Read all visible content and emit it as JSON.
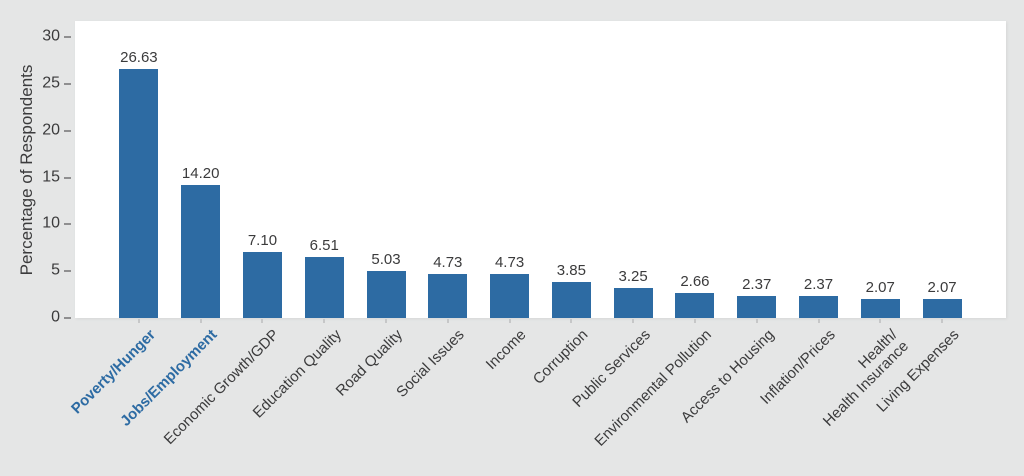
{
  "chart_data": {
    "type": "bar",
    "title": "",
    "ylabel": "Percentage of Respondents",
    "xlabel": "",
    "categories": [
      "Poverty/Hunger",
      "Jobs/Employment",
      "Economic Growth/GDP",
      "Education Quality",
      "Road Quality",
      "Social Issues",
      "Income",
      "Corruption",
      "Public Services",
      "Environmental Pollution",
      "Access to Housing",
      "Inflation/Prices",
      "Health/\nHealth Insurance",
      "Living Expenses"
    ],
    "values": [
      26.63,
      14.2,
      7.1,
      6.51,
      5.03,
      4.73,
      4.73,
      3.85,
      3.25,
      2.66,
      2.37,
      2.37,
      2.07,
      2.07
    ],
    "value_labels": [
      "26.63",
      "14.20",
      "7.10",
      "6.51",
      "5.03",
      "4.73",
      "4.73",
      "3.85",
      "3.25",
      "2.66",
      "2.37",
      "2.37",
      "2.07",
      "2.07"
    ],
    "highlighted_indices": [
      0,
      1
    ],
    "yticks": [
      0,
      5,
      10,
      15,
      20,
      25,
      30
    ],
    "ylim": [
      0,
      30
    ],
    "grid": false,
    "legend_position": "none",
    "colors": {
      "bar": "#2d6ba3",
      "highlight_label": "#2d6ba3",
      "text": "#3b3b3c",
      "tick_mark": "#8f8f90",
      "page_bg": "#e5e6e6",
      "plot_bg": "#ffffff"
    }
  }
}
